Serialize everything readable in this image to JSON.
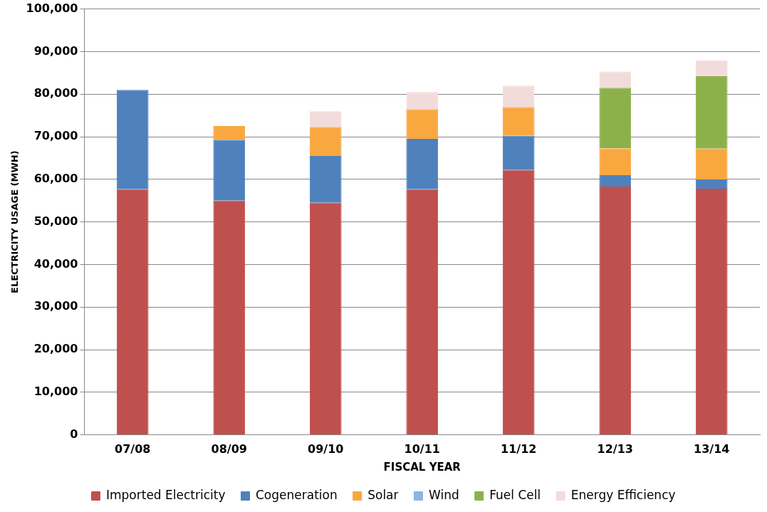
{
  "chart_data": {
    "type": "bar",
    "stacked": true,
    "xlabel": "FISCAL YEAR",
    "ylabel": "ELECTRICITY USAGE (MWH)",
    "categories": [
      "07/08",
      "08/09",
      "09/10",
      "10/11",
      "11/12",
      "12/13",
      "13/14"
    ],
    "series": [
      {
        "name": "Imported Electricity",
        "color": "#c0504d",
        "values": [
          57700,
          55000,
          54500,
          57700,
          62200,
          58300,
          57800
        ]
      },
      {
        "name": "Cogeneration",
        "color": "#4f81bd",
        "values": [
          23300,
          14300,
          11000,
          11800,
          8000,
          2700,
          2200
        ]
      },
      {
        "name": "Solar",
        "color": "#f9a840",
        "values": [
          null,
          3200,
          6800,
          7000,
          6800,
          6300,
          7200
        ]
      },
      {
        "name": "Wind",
        "color": "#8db4e2",
        "values": [
          null,
          null,
          null,
          null,
          null,
          null,
          null
        ]
      },
      {
        "name": "Fuel Cell",
        "color": "#8db14a",
        "values": [
          null,
          null,
          null,
          null,
          null,
          14200,
          17000
        ]
      },
      {
        "name": "Energy Efficiency",
        "color": "#f2dcdb",
        "values": [
          null,
          null,
          3700,
          4000,
          5000,
          3800,
          3800
        ]
      }
    ],
    "ylim": [
      0,
      100000
    ],
    "yticks": [
      0,
      {
        "value": 10000,
        "label": "10,000"
      },
      {
        "value": 20000,
        "label": "20,000"
      },
      {
        "value": 30000,
        "label": "30,000"
      },
      {
        "value": 40000,
        "label": "40,000"
      },
      {
        "value": 50000,
        "label": "50,000"
      },
      {
        "value": 60000,
        "label": "60,000"
      },
      {
        "value": 70000,
        "label": "70,000"
      },
      {
        "value": 80000,
        "label": "80,000"
      },
      {
        "value": 90000,
        "label": "90,000"
      },
      {
        "value": 100000,
        "label": "100,000"
      }
    ],
    "grid": "y",
    "legend": "bottom"
  }
}
